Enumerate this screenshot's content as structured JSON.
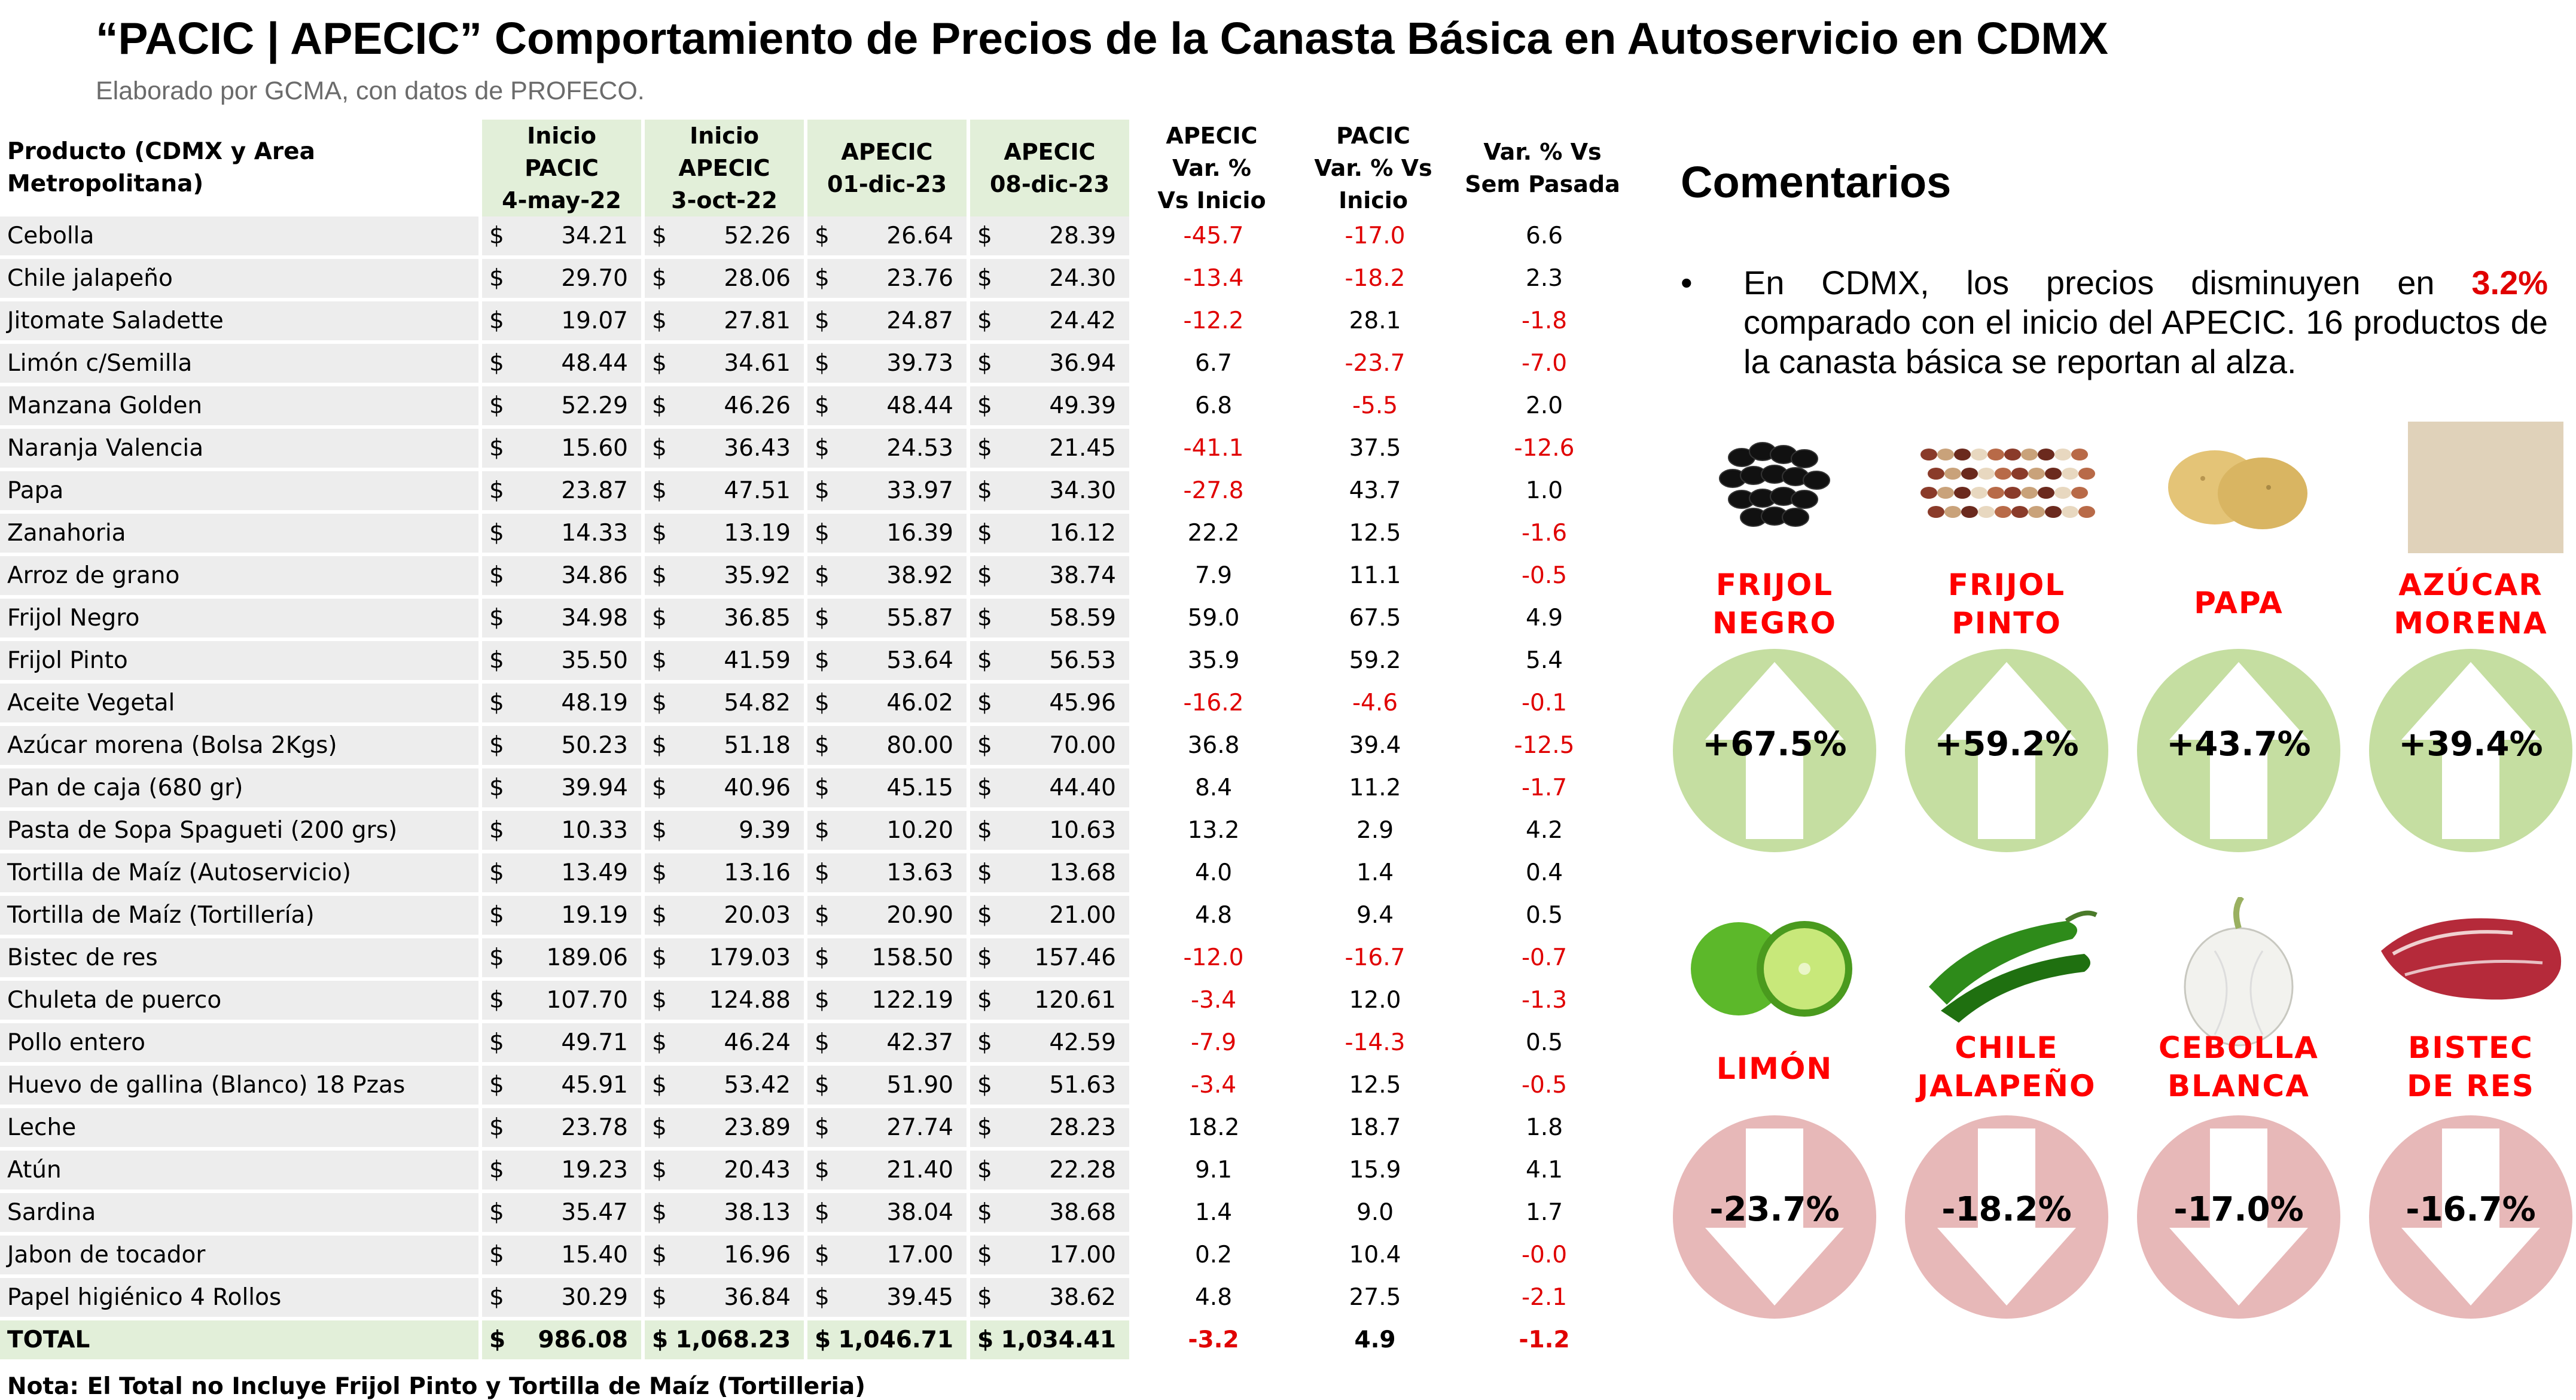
{
  "title": "“PACIC | APECIC” Comportamiento de Precios de la Canasta Básica en Autoservicio en CDMX",
  "subtitle": "Elaborado por GCMA, con datos de PROFECO.",
  "table": {
    "headers": {
      "product": "Producto (CDMX y Area Metropolitana)",
      "inicio_pacic": [
        "Inicio",
        "PACIC",
        "4-may-22"
      ],
      "inicio_apecic": [
        "Inicio",
        "APECIC",
        "3-oct-22"
      ],
      "apecic_1": [
        "APECIC",
        "01-dic-23"
      ],
      "apecic_2": [
        "APECIC",
        "08-dic-23"
      ],
      "apecic_var": [
        "APECIC",
        "Var. %",
        "Vs  Inicio"
      ],
      "pacic_var": [
        "PACIC",
        "Var. % Vs",
        "Inicio"
      ],
      "sem_var": [
        "Var. % Vs",
        "Sem Pasada"
      ]
    },
    "currency": "$",
    "rows": [
      {
        "product": "Cebolla",
        "p1": "34.21",
        "p2": "52.26",
        "p3": "26.64",
        "p4": "28.39",
        "v1": "-45.7",
        "v2": "-17.0",
        "v3": "6.6"
      },
      {
        "product": "Chile jalapeño",
        "p1": "29.70",
        "p2": "28.06",
        "p3": "23.76",
        "p4": "24.30",
        "v1": "-13.4",
        "v2": "-18.2",
        "v3": "2.3"
      },
      {
        "product": "Jitomate Saladette",
        "p1": "19.07",
        "p2": "27.81",
        "p3": "24.87",
        "p4": "24.42",
        "v1": "-12.2",
        "v2": "28.1",
        "v3": "-1.8"
      },
      {
        "product": "Limón c/Semilla",
        "p1": "48.44",
        "p2": "34.61",
        "p3": "39.73",
        "p4": "36.94",
        "v1": "6.7",
        "v2": "-23.7",
        "v3": "-7.0"
      },
      {
        "product": "Manzana Golden",
        "p1": "52.29",
        "p2": "46.26",
        "p3": "48.44",
        "p4": "49.39",
        "v1": "6.8",
        "v2": "-5.5",
        "v3": "2.0"
      },
      {
        "product": "Naranja Valencia",
        "p1": "15.60",
        "p2": "36.43",
        "p3": "24.53",
        "p4": "21.45",
        "v1": "-41.1",
        "v2": "37.5",
        "v3": "-12.6"
      },
      {
        "product": "Papa",
        "p1": "23.87",
        "p2": "47.51",
        "p3": "33.97",
        "p4": "34.30",
        "v1": "-27.8",
        "v2": "43.7",
        "v3": "1.0"
      },
      {
        "product": "Zanahoria",
        "p1": "14.33",
        "p2": "13.19",
        "p3": "16.39",
        "p4": "16.12",
        "v1": "22.2",
        "v2": "12.5",
        "v3": "-1.6"
      },
      {
        "product": "Arroz de grano",
        "p1": "34.86",
        "p2": "35.92",
        "p3": "38.92",
        "p4": "38.74",
        "v1": "7.9",
        "v2": "11.1",
        "v3": "-0.5"
      },
      {
        "product": "Frijol Negro",
        "p1": "34.98",
        "p2": "36.85",
        "p3": "55.87",
        "p4": "58.59",
        "v1": "59.0",
        "v2": "67.5",
        "v3": "4.9"
      },
      {
        "product": "Frijol Pinto",
        "p1": "35.50",
        "p2": "41.59",
        "p3": "53.64",
        "p4": "56.53",
        "v1": "35.9",
        "v2": "59.2",
        "v3": "5.4"
      },
      {
        "product": "Aceite Vegetal",
        "p1": "48.19",
        "p2": "54.82",
        "p3": "46.02",
        "p4": "45.96",
        "v1": "-16.2",
        "v2": "-4.6",
        "v3": "-0.1"
      },
      {
        "product": "Azúcar morena (Bolsa 2Kgs)",
        "p1": "50.23",
        "p2": "51.18",
        "p3": "80.00",
        "p4": "70.00",
        "v1": "36.8",
        "v2": "39.4",
        "v3": "-12.5"
      },
      {
        "product": "Pan de caja (680 gr)",
        "p1": "39.94",
        "p2": "40.96",
        "p3": "45.15",
        "p4": "44.40",
        "v1": "8.4",
        "v2": "11.2",
        "v3": "-1.7"
      },
      {
        "product": "Pasta de Sopa Spagueti (200 grs)",
        "p1": "10.33",
        "p2": "9.39",
        "p3": "10.20",
        "p4": "10.63",
        "v1": "13.2",
        "v2": "2.9",
        "v3": "4.2"
      },
      {
        "product": "Tortilla de Maíz (Autoservicio)",
        "p1": "13.49",
        "p2": "13.16",
        "p3": "13.63",
        "p4": "13.68",
        "v1": "4.0",
        "v2": "1.4",
        "v3": "0.4"
      },
      {
        "product": "Tortilla de Maíz (Tortillería)",
        "p1": "19.19",
        "p2": "20.03",
        "p3": "20.90",
        "p4": "21.00",
        "v1": "4.8",
        "v2": "9.4",
        "v3": "0.5"
      },
      {
        "product": "Bistec de res",
        "p1": "189.06",
        "p2": "179.03",
        "p3": "158.50",
        "p4": "157.46",
        "v1": "-12.0",
        "v2": "-16.7",
        "v3": "-0.7"
      },
      {
        "product": "Chuleta de puerco",
        "p1": "107.70",
        "p2": "124.88",
        "p3": "122.19",
        "p4": "120.61",
        "v1": "-3.4",
        "v2": "12.0",
        "v3": "-1.3"
      },
      {
        "product": "Pollo entero",
        "p1": "49.71",
        "p2": "46.24",
        "p3": "42.37",
        "p4": "42.59",
        "v1": "-7.9",
        "v2": "-14.3",
        "v3": "0.5"
      },
      {
        "product": "Huevo de gallina (Blanco) 18 Pzas",
        "p1": "45.91",
        "p2": "53.42",
        "p3": "51.90",
        "p4": "51.63",
        "v1": "-3.4",
        "v2": "12.5",
        "v3": "-0.5"
      },
      {
        "product": "Leche",
        "p1": "23.78",
        "p2": "23.89",
        "p3": "27.74",
        "p4": "28.23",
        "v1": "18.2",
        "v2": "18.7",
        "v3": "1.8"
      },
      {
        "product": "Atún",
        "p1": "19.23",
        "p2": "20.43",
        "p3": "21.40",
        "p4": "22.28",
        "v1": "9.1",
        "v2": "15.9",
        "v3": "4.1"
      },
      {
        "product": "Sardina",
        "p1": "35.47",
        "p2": "38.13",
        "p3": "38.04",
        "p4": "38.68",
        "v1": "1.4",
        "v2": "9.0",
        "v3": "1.7"
      },
      {
        "product": "Jabon de tocador",
        "p1": "15.40",
        "p2": "16.96",
        "p3": "17.00",
        "p4": "17.00",
        "v1": "0.2",
        "v2": "10.4",
        "v3": "-0.0"
      },
      {
        "product": "Papel higiénico 4 Rollos",
        "p1": "30.29",
        "p2": "36.84",
        "p3": "39.45",
        "p4": "38.62",
        "v1": "4.8",
        "v2": "27.5",
        "v3": "-2.1"
      }
    ],
    "total": {
      "product": "TOTAL",
      "p1": "986.08",
      "p2": "1,068.23",
      "p3": "1,046.71",
      "p4": "1,034.41",
      "v1": "-3.2",
      "v2": "4.9",
      "v3": "-1.2"
    }
  },
  "note": "Nota: El Total no Incluye Frijol Pinto y Tortilla de Maíz (Tortilleria)",
  "comments": {
    "title": "Comentarios",
    "bullet": "•",
    "text_before": "En CDMX, los precios disminuyen en ",
    "highlight": "3.2%",
    "text_after": " comparado con el inicio del APECIC. 16 productos de la canasta básica se reportan al alza."
  },
  "colors": {
    "negative": "#e00000",
    "header_fill": "#e2efd9",
    "row_fill": "#ededed",
    "up_circle": "#c5dea1",
    "down_circle": "#e7b8b8",
    "tile_label": "#ff0000"
  },
  "increases": [
    {
      "line1": "FRIJOL",
      "line2": "NEGRO",
      "value": "+67.5%",
      "icon": "black-beans-icon"
    },
    {
      "line1": "FRIJOL",
      "line2": "PINTO",
      "value": "+59.2%",
      "icon": "pinto-beans-icon"
    },
    {
      "line1": "PAPA",
      "line2": "",
      "value": "+43.7%",
      "icon": "potato-icon"
    },
    {
      "line1": "AZÚCAR",
      "line2": "MORENA",
      "value": "+39.4%",
      "icon": "brown-sugar-icon"
    }
  ],
  "decreases": [
    {
      "line1": "LIMÓN",
      "line2": "",
      "value": "-23.7%",
      "icon": "lime-icon"
    },
    {
      "line1": "CHILE",
      "line2": "JALAPEÑO",
      "value": "-18.2%",
      "icon": "jalapeno-icon"
    },
    {
      "line1": "CEBOLLA",
      "line2": "BLANCA",
      "value": "-17.0%",
      "icon": "onion-icon"
    },
    {
      "line1": "BISTEC",
      "line2": "DE RES",
      "value": "-16.7%",
      "icon": "beef-steak-icon"
    }
  ]
}
